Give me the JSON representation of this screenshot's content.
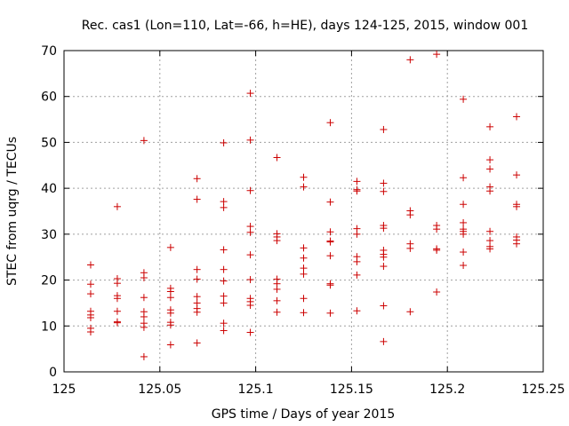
{
  "chart_data": {
    "type": "scatter",
    "title": "Rec. cas1 (Lon=110, Lat=-66, h=HE), days 124-125, 2015, window 001",
    "xlabel": "GPS time / Days of year 2015",
    "ylabel": "STEC from uqrg / TECUs",
    "xlim": [
      125,
      125.25
    ],
    "ylim": [
      0,
      70
    ],
    "xticks": [
      125,
      125.05,
      125.1,
      125.15,
      125.2,
      125.25
    ],
    "xtick_labels": [
      "125",
      "125.05",
      "125.1",
      "125.15",
      "125.2",
      "125.25"
    ],
    "yticks": [
      0,
      10,
      20,
      30,
      40,
      50,
      60,
      70
    ],
    "ytick_labels": [
      "0",
      "10",
      "20",
      "30",
      "40",
      "50",
      "60",
      "70"
    ],
    "grid": true,
    "marker": "+",
    "color": "#cc0000",
    "series": [
      {
        "points": [
          [
            125.0139,
            23.3
          ],
          [
            125.0139,
            19.1
          ],
          [
            125.0139,
            17.0
          ],
          [
            125.0139,
            13.2
          ],
          [
            125.0139,
            12.4
          ],
          [
            125.0139,
            11.8
          ],
          [
            125.0139,
            9.5
          ],
          [
            125.0139,
            8.7
          ],
          [
            125.0278,
            36.0
          ],
          [
            125.0278,
            20.3
          ],
          [
            125.0278,
            19.3
          ],
          [
            125.0278,
            16.6
          ],
          [
            125.0278,
            16.0
          ],
          [
            125.0278,
            13.2
          ],
          [
            125.0278,
            10.9
          ],
          [
            125.0278,
            10.7
          ],
          [
            125.0417,
            50.4
          ],
          [
            125.0417,
            21.6
          ],
          [
            125.0417,
            20.5
          ],
          [
            125.0417,
            16.2
          ],
          [
            125.0417,
            13.1
          ],
          [
            125.0417,
            12.0
          ],
          [
            125.0417,
            10.6
          ],
          [
            125.0417,
            9.7
          ],
          [
            125.0417,
            3.3
          ],
          [
            125.0556,
            27.1
          ],
          [
            125.0556,
            18.2
          ],
          [
            125.0556,
            17.5
          ],
          [
            125.0556,
            16.2
          ],
          [
            125.0556,
            13.5
          ],
          [
            125.0556,
            12.8
          ],
          [
            125.0556,
            10.8
          ],
          [
            125.0556,
            10.2
          ],
          [
            125.0556,
            5.9
          ],
          [
            125.0694,
            42.1
          ],
          [
            125.0694,
            37.6
          ],
          [
            125.0694,
            22.3
          ],
          [
            125.0694,
            20.2
          ],
          [
            125.0694,
            16.4
          ],
          [
            125.0694,
            15.0
          ],
          [
            125.0694,
            13.8
          ],
          [
            125.0694,
            13.0
          ],
          [
            125.0694,
            6.3
          ],
          [
            125.0833,
            49.9
          ],
          [
            125.0833,
            37.1
          ],
          [
            125.0833,
            35.8
          ],
          [
            125.0833,
            26.6
          ],
          [
            125.0833,
            22.3
          ],
          [
            125.0833,
            19.8
          ],
          [
            125.0833,
            16.5
          ],
          [
            125.0833,
            15.0
          ],
          [
            125.0833,
            10.6
          ],
          [
            125.0833,
            9.0
          ],
          [
            125.0972,
            60.7
          ],
          [
            125.0972,
            50.5
          ],
          [
            125.0972,
            39.5
          ],
          [
            125.0972,
            31.7
          ],
          [
            125.0972,
            30.4
          ],
          [
            125.0972,
            25.5
          ],
          [
            125.0972,
            20.1
          ],
          [
            125.0972,
            16.0
          ],
          [
            125.0972,
            15.3
          ],
          [
            125.0972,
            14.5
          ],
          [
            125.0972,
            8.6
          ],
          [
            125.1111,
            46.7
          ],
          [
            125.1111,
            30.1
          ],
          [
            125.1111,
            29.4
          ],
          [
            125.1111,
            28.6
          ],
          [
            125.1111,
            20.2
          ],
          [
            125.1111,
            19.2
          ],
          [
            125.1111,
            18.0
          ],
          [
            125.1111,
            15.5
          ],
          [
            125.1111,
            13.0
          ],
          [
            125.125,
            42.4
          ],
          [
            125.125,
            40.3
          ],
          [
            125.125,
            27.0
          ],
          [
            125.125,
            24.8
          ],
          [
            125.125,
            22.6
          ],
          [
            125.125,
            21.3
          ],
          [
            125.125,
            16.0
          ],
          [
            125.125,
            12.9
          ],
          [
            125.1389,
            54.3
          ],
          [
            125.1389,
            37.0
          ],
          [
            125.1389,
            30.5
          ],
          [
            125.1389,
            28.5
          ],
          [
            125.1389,
            28.3
          ],
          [
            125.1389,
            25.3
          ],
          [
            125.1389,
            19.2
          ],
          [
            125.1389,
            18.9
          ],
          [
            125.1389,
            12.8
          ],
          [
            125.1528,
            41.5
          ],
          [
            125.1528,
            39.7
          ],
          [
            125.1528,
            39.4
          ],
          [
            125.1528,
            31.2
          ],
          [
            125.1528,
            30.0
          ],
          [
            125.1528,
            25.1
          ],
          [
            125.1528,
            24.0
          ],
          [
            125.1528,
            21.1
          ],
          [
            125.1528,
            13.3
          ],
          [
            125.1667,
            52.8
          ],
          [
            125.1667,
            41.1
          ],
          [
            125.1667,
            39.3
          ],
          [
            125.1667,
            31.9
          ],
          [
            125.1667,
            31.3
          ],
          [
            125.1667,
            26.5
          ],
          [
            125.1667,
            25.6
          ],
          [
            125.1667,
            25.0
          ],
          [
            125.1667,
            23.0
          ],
          [
            125.1667,
            14.4
          ],
          [
            125.1667,
            6.6
          ],
          [
            125.1806,
            68.0
          ],
          [
            125.1806,
            35.1
          ],
          [
            125.1806,
            34.2
          ],
          [
            125.1806,
            27.9
          ],
          [
            125.1806,
            26.9
          ],
          [
            125.1806,
            13.1
          ],
          [
            125.1944,
            69.2
          ],
          [
            125.1944,
            31.9
          ],
          [
            125.1944,
            31.1
          ],
          [
            125.1944,
            26.8
          ],
          [
            125.1944,
            26.5
          ],
          [
            125.1944,
            17.4
          ],
          [
            125.2083,
            59.4
          ],
          [
            125.2083,
            42.3
          ],
          [
            125.2083,
            36.5
          ],
          [
            125.2083,
            32.5
          ],
          [
            125.2083,
            31.1
          ],
          [
            125.2083,
            30.6
          ],
          [
            125.2083,
            30.0
          ],
          [
            125.2083,
            26.1
          ],
          [
            125.2083,
            23.2
          ],
          [
            125.2222,
            53.4
          ],
          [
            125.2222,
            46.2
          ],
          [
            125.2222,
            44.2
          ],
          [
            125.2222,
            40.3
          ],
          [
            125.2222,
            39.4
          ],
          [
            125.2222,
            30.6
          ],
          [
            125.2222,
            28.6
          ],
          [
            125.2222,
            27.3
          ],
          [
            125.2222,
            26.8
          ],
          [
            125.2361,
            55.6
          ],
          [
            125.2361,
            42.9
          ],
          [
            125.2361,
            36.5
          ],
          [
            125.2361,
            36.0
          ],
          [
            125.2361,
            29.4
          ],
          [
            125.2361,
            28.7
          ],
          [
            125.2361,
            27.9
          ]
        ]
      }
    ]
  }
}
